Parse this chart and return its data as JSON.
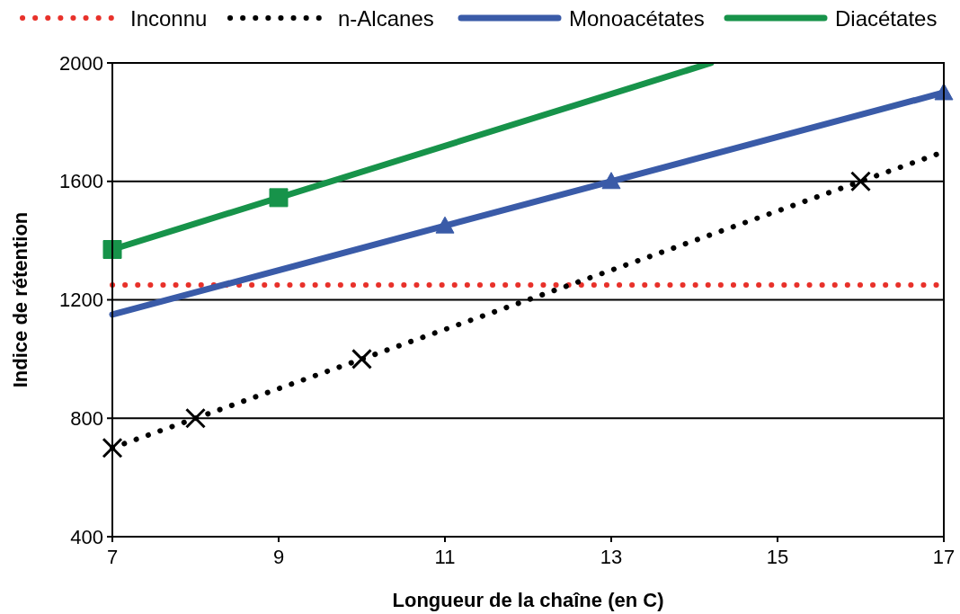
{
  "chart_data": {
    "type": "line",
    "xlabel": "Longueur de la chaîne (en C)",
    "ylabel": "Indice de rétention",
    "xlim": [
      7,
      17
    ],
    "xticks": [
      7,
      9,
      11,
      13,
      15,
      17
    ],
    "ylim": [
      400,
      2000
    ],
    "yticks": [
      400,
      800,
      1200,
      1600,
      2000
    ],
    "grid": "y",
    "legend": "top",
    "series": [
      {
        "name": "Inconnu",
        "color": "#e8312a",
        "line_style": "dotted",
        "marker": "none",
        "x": [
          7,
          17
        ],
        "values": [
          1250,
          1250
        ]
      },
      {
        "name": "n-Alcanes",
        "color": "#000000",
        "line_style": "dotted",
        "marker": "none",
        "x": [
          7,
          17
        ],
        "values": [
          700,
          1700
        ]
      },
      {
        "name": "Monoacétates",
        "color": "#3a5ba8",
        "line_style": "solid",
        "marker": "none",
        "x": [
          7,
          17
        ],
        "values": [
          1150,
          1900
        ]
      },
      {
        "name": "Diacétates",
        "color": "#17934a",
        "line_style": "solid",
        "marker": "none",
        "x": [
          7,
          14.2
        ],
        "values": [
          1370,
          2000
        ]
      },
      {
        "type": "scatter",
        "color": "#000000",
        "marker": "cross",
        "x": [
          7,
          8,
          10,
          16
        ],
        "values": [
          700,
          800,
          1000,
          1600
        ]
      },
      {
        "type": "scatter",
        "color": "#3a5ba8",
        "marker": "triangle",
        "x": [
          11,
          13,
          17
        ],
        "values": [
          1450,
          1600,
          1900
        ]
      },
      {
        "type": "scatter",
        "color": "#17934a",
        "marker": "square",
        "x": [
          7,
          9
        ],
        "values": [
          1370,
          1545
        ]
      }
    ]
  }
}
